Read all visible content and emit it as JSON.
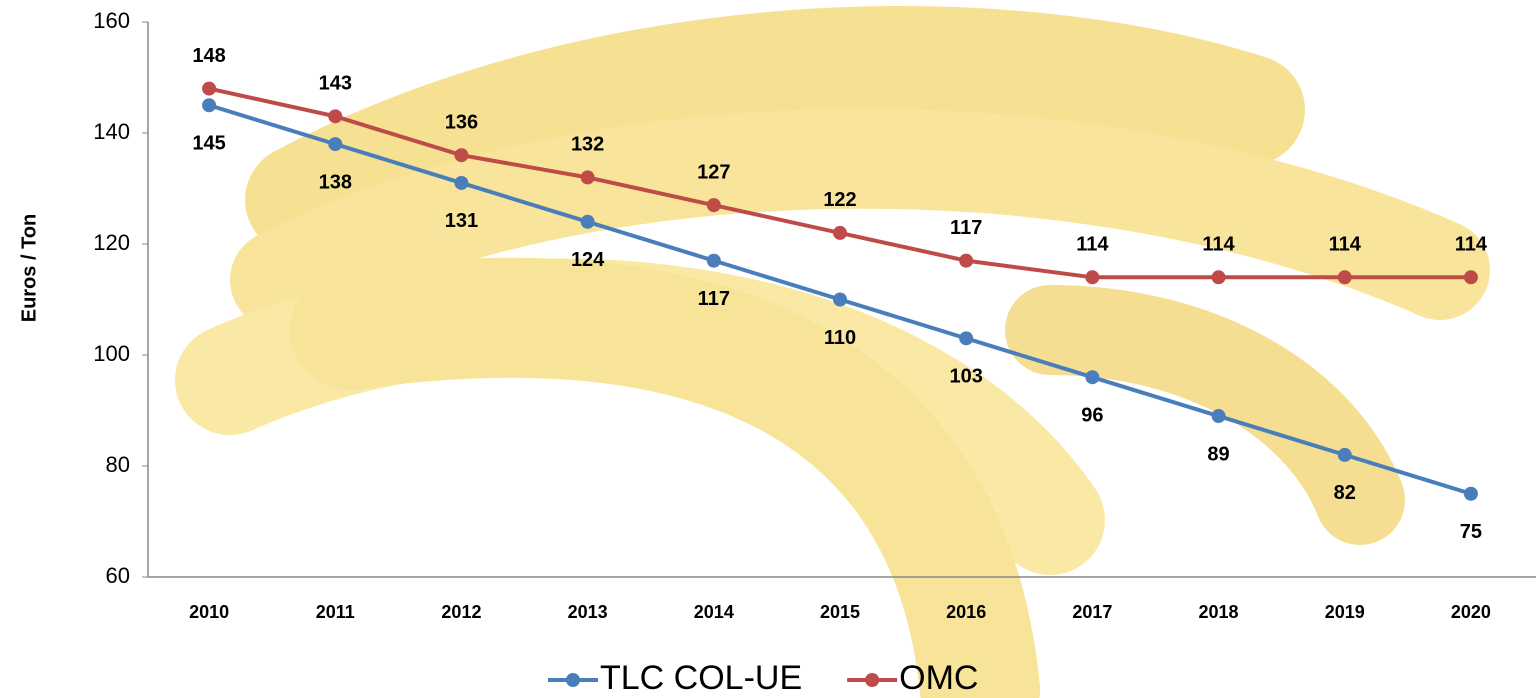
{
  "chart_data": {
    "type": "line",
    "y_label": "Euros / Ton",
    "categories": [
      "2010",
      "2011",
      "2012",
      "2013",
      "2014",
      "2015",
      "2016",
      "2017",
      "2018",
      "2019",
      "2020"
    ],
    "series": [
      {
        "name": "TLC COL-UE",
        "color": "#4a7ebb",
        "values": [
          145,
          138,
          131,
          124,
          117,
          110,
          103,
          96,
          89,
          82,
          75
        ]
      },
      {
        "name": "OMC",
        "color": "#be4b48",
        "values": [
          148,
          143,
          136,
          132,
          127,
          122,
          117,
          114,
          114,
          114,
          114
        ]
      }
    ],
    "ylim": [
      60,
      160
    ],
    "yticks": [
      60,
      80,
      100,
      120,
      140,
      160
    ],
    "grid": false,
    "legend": "bottom"
  }
}
